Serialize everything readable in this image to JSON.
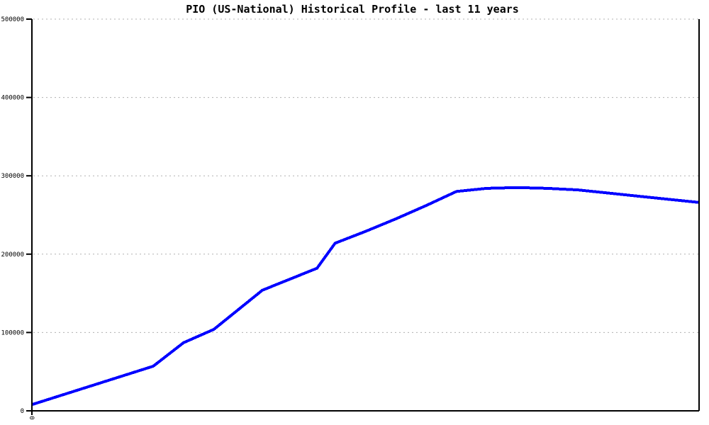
{
  "window": {
    "background": "#ffffff"
  },
  "colors": {
    "background": "#ffffff",
    "line": "#0000ff",
    "grid": "#b0b0b0",
    "axis": "#000000",
    "text": "#000000"
  },
  "chart_data": {
    "type": "line",
    "title": "PIO (US-National) Historical Profile - last 11 years",
    "xlabel": "",
    "ylabel": "",
    "x_unit": "years since start of 11-year window",
    "xlim": [
      0,
      11
    ],
    "ylim": [
      0,
      500000
    ],
    "yticks": [
      0,
      100000,
      200000,
      300000,
      400000,
      500000
    ],
    "ytick_labels": [
      "0",
      "100000",
      "200000",
      "300000",
      "400000",
      "500000"
    ],
    "xticks": [
      0
    ],
    "xtick_labels": [
      "0"
    ],
    "xtick_label_rotation_deg": 90,
    "grid": "horizontal dotted gridlines at each y tick",
    "legend": "none",
    "plot_border": "left, bottom and right solid black; top open (dotted 500000 gridline)",
    "series": [
      {
        "name": "PIO (US-National)",
        "color": "#0000ff",
        "x": [
          0,
          2.0,
          2.5,
          3.0,
          3.8,
          4.7,
          5.0,
          5.5,
          6.0,
          6.5,
          7.0,
          7.5,
          8.0,
          8.5,
          9.0,
          9.5,
          10.0,
          10.5,
          11.0
        ],
        "values": [
          8000,
          57000,
          87000,
          104000,
          154000,
          182000,
          214000,
          229000,
          245000,
          262000,
          280000,
          284000,
          285000,
          284000,
          282000,
          278000,
          274000,
          270000,
          266000
        ]
      }
    ]
  }
}
